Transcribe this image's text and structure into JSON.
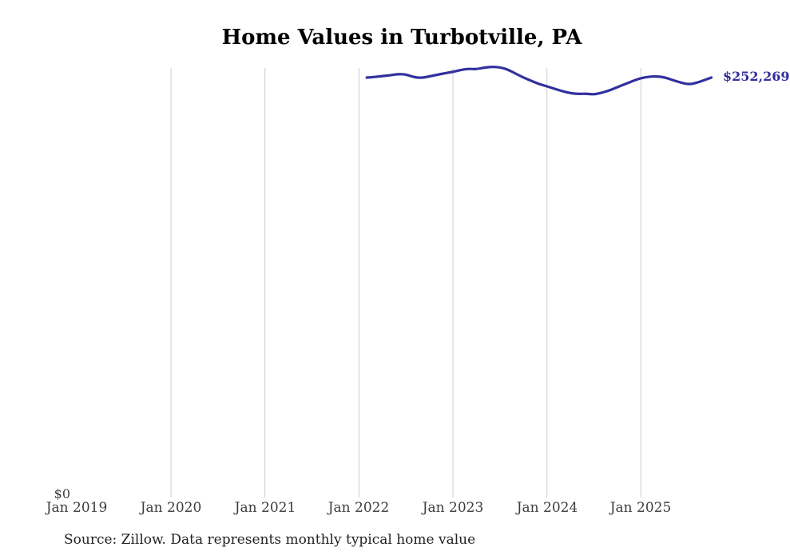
{
  "chart_data": {
    "type": "line",
    "title": "Home Values in Turbotville, PA",
    "series_name": "Typical home value",
    "x": [
      "Feb 2022",
      "Mar 2022",
      "Apr 2022",
      "May 2022",
      "Jun 2022",
      "Jul 2022",
      "Aug 2022",
      "Sep 2022",
      "Oct 2022",
      "Nov 2022",
      "Dec 2022",
      "Jan 2023",
      "Feb 2023",
      "Mar 2023",
      "Apr 2023",
      "May 2023",
      "Jun 2023",
      "Jul 2023",
      "Aug 2023",
      "Sep 2023",
      "Oct 2023",
      "Nov 2023",
      "Dec 2023",
      "Jan 2024",
      "Feb 2024",
      "Mar 2024",
      "Apr 2024",
      "May 2024",
      "Jun 2024",
      "Jul 2024",
      "Aug 2024",
      "Sep 2024",
      "Oct 2024",
      "Nov 2024",
      "Dec 2024",
      "Jan 2025",
      "Feb 2025",
      "Mar 2025",
      "Apr 2025",
      "May 2025",
      "Jun 2025",
      "Jul 2025",
      "Aug 2025",
      "Sep 2025",
      "Oct 2025"
    ],
    "values": [
      252300,
      252600,
      253200,
      253700,
      254400,
      254200,
      252500,
      252100,
      253000,
      254000,
      254900,
      255700,
      256900,
      257600,
      257300,
      258300,
      258800,
      258500,
      257100,
      254700,
      252300,
      250300,
      248400,
      247000,
      245500,
      244100,
      242900,
      242400,
      242600,
      242100,
      243100,
      244600,
      246500,
      248400,
      250300,
      252000,
      252800,
      253000,
      252500,
      250800,
      249400,
      248200,
      248900,
      250600,
      252269
    ],
    "final_value": 252269,
    "final_value_label": "$252,269",
    "x_axis": {
      "ticks": [
        {
          "label": "Jan 2019",
          "gridline": false
        },
        {
          "label": "Jan 2020",
          "gridline": true
        },
        {
          "label": "Jan 2021",
          "gridline": true
        },
        {
          "label": "Jan 2022",
          "gridline": true
        },
        {
          "label": "Jan 2023",
          "gridline": true
        },
        {
          "label": "Jan 2024",
          "gridline": true
        },
        {
          "label": "Jan 2025",
          "gridline": true
        }
      ]
    },
    "y_axis": {
      "zero_label": "$0",
      "ylim": [
        0,
        260000
      ]
    },
    "grid": "vertical-only",
    "legend": "none",
    "colors": {
      "line": "#32309e",
      "end_label": "#312f9d",
      "gridline": "#cccccc",
      "tick_text": "#3d3d3d",
      "title_text": "#000000",
      "source_text": "#222222"
    }
  },
  "footer": {
    "source_note": "Source: Zillow. Data represents monthly typical home value"
  }
}
